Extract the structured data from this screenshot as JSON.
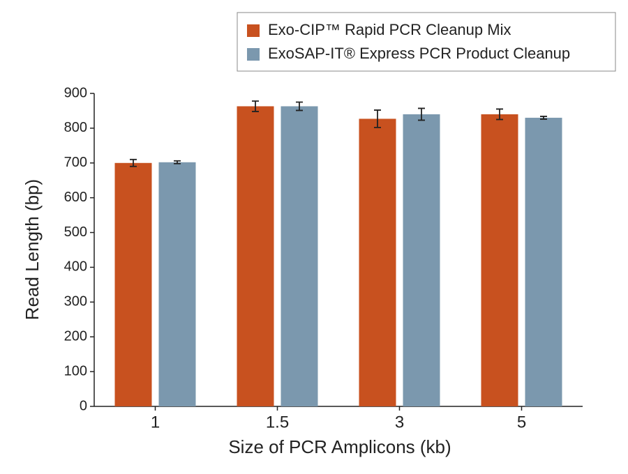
{
  "chart_data": {
    "type": "bar",
    "x_label": "Size of PCR Amplicons (kb)",
    "y_label": "Read Length (bp)",
    "categories": [
      "1",
      "1.5",
      "3",
      "5"
    ],
    "series": [
      {
        "name": "Exo-CIP™ Rapid PCR Cleanup Mix",
        "color": "#c8511f",
        "values": [
          700,
          863,
          827,
          840
        ],
        "errors": [
          10,
          15,
          25,
          15
        ]
      },
      {
        "name": "ExoSAP-IT® Express PCR Product Cleanup",
        "color": "#7b98ae",
        "values": [
          702,
          863,
          840,
          830
        ],
        "errors": [
          4,
          12,
          17,
          4
        ]
      }
    ],
    "ylim": [
      0,
      900
    ],
    "yticks": [
      0,
      100,
      200,
      300,
      400,
      500,
      600,
      700,
      800,
      900
    ],
    "legend": "top-right"
  }
}
